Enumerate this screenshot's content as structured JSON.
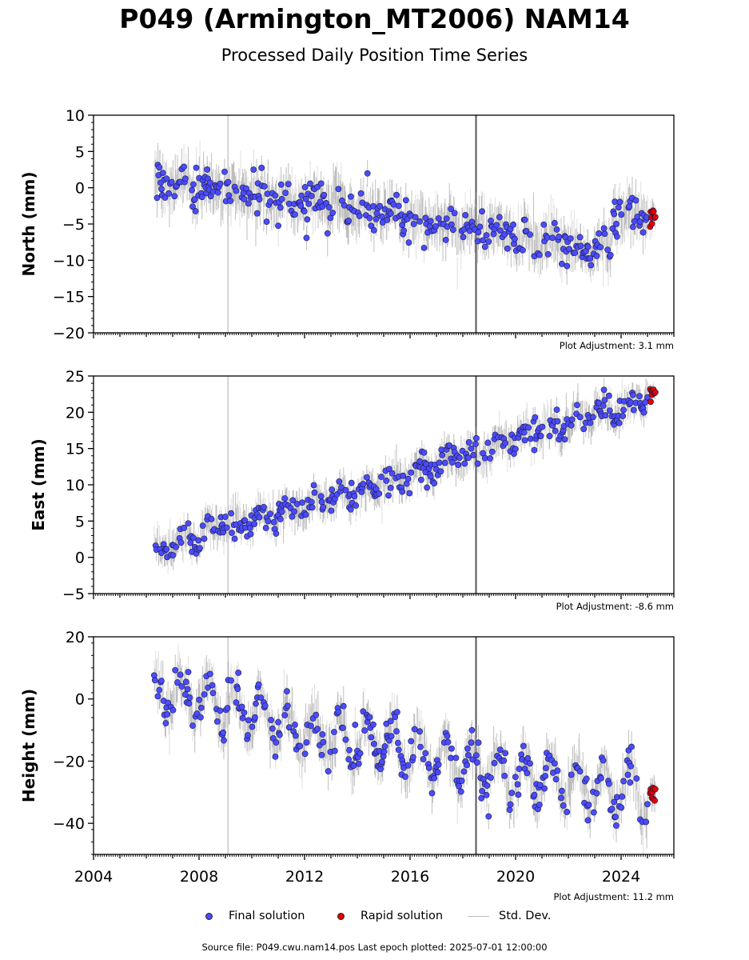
{
  "title": "P049 (Armington_MT2006) NAM14",
  "subtitle": "Processed Daily Position Time Series",
  "source_text": "Source file: P049.cwu.nam14.pos  Last epoch plotted: 2025-07-01 12:00:00",
  "legend": {
    "final": "Final solution",
    "rapid": "Rapid solution",
    "stddev": "Std. Dev."
  },
  "colors": {
    "final": "#4b4bff",
    "rapid": "#e60000",
    "stddev": "#bdbdbd",
    "event_line_light": "#c8c8c8",
    "event_line_dark": "#555555"
  },
  "chart_data": [
    {
      "type": "scatter",
      "ylabel": "North (mm)",
      "plot_adjustment": "Plot Adjustment: 3.1 mm",
      "xlim": [
        2004,
        2026
      ],
      "ylim": [
        -20,
        10
      ],
      "yticks": [
        10,
        5,
        0,
        -5,
        -10,
        -15,
        -20
      ],
      "ytick_labels": [
        "10",
        "5",
        "0",
        "−5",
        "−10",
        "−15",
        "−20"
      ],
      "event_lines": [
        {
          "x": 2009.1,
          "style": "light"
        },
        {
          "x": 2018.5,
          "style": "dark"
        }
      ],
      "series": [
        {
          "name": "Final solution",
          "x_range": [
            2006.3,
            2025.0
          ],
          "trend_points": [
            [
              2006.3,
              0.8
            ],
            [
              2012.0,
              -2.0
            ],
            [
              2018.0,
              -5.5
            ],
            [
              2023.6,
              -9.0
            ],
            [
              2023.7,
              -3.8
            ],
            [
              2025.0,
              -3.8
            ]
          ],
          "seasonal_amplitude": 0.8,
          "scatter": 1.4
        },
        {
          "name": "Rapid solution",
          "x_range": [
            2025.1,
            2025.3
          ],
          "trend_points": [
            [
              2025.1,
              -4.0
            ],
            [
              2025.3,
              -4.2
            ]
          ],
          "seasonal_amplitude": 0.3,
          "scatter": 0.8
        }
      ]
    },
    {
      "type": "scatter",
      "ylabel": "East (mm)",
      "plot_adjustment": "Plot Adjustment: -8.6 mm",
      "xlim": [
        2004,
        2026
      ],
      "ylim": [
        -5,
        25
      ],
      "yticks": [
        25,
        20,
        15,
        10,
        5,
        0,
        -5
      ],
      "ytick_labels": [
        "25",
        "20",
        "15",
        "10",
        "5",
        "0",
        "−5"
      ],
      "event_lines": [
        {
          "x": 2009.1,
          "style": "light"
        },
        {
          "x": 2018.5,
          "style": "dark"
        }
      ],
      "series": [
        {
          "name": "Final solution",
          "x_range": [
            2006.3,
            2025.0
          ],
          "trend_points": [
            [
              2006.3,
              0.8
            ],
            [
              2009.0,
              4.5
            ],
            [
              2012.0,
              7.0
            ],
            [
              2016.0,
              11.5
            ],
            [
              2018.5,
              14.5
            ],
            [
              2021.0,
              17.5
            ],
            [
              2025.0,
              22.0
            ]
          ],
          "seasonal_amplitude": 0.9,
          "scatter": 1.0
        },
        {
          "name": "Rapid solution",
          "x_range": [
            2025.1,
            2025.3
          ],
          "trend_points": [
            [
              2025.1,
              22.5
            ],
            [
              2025.3,
              22.7
            ]
          ],
          "seasonal_amplitude": 0.3,
          "scatter": 0.6
        }
      ]
    },
    {
      "type": "scatter",
      "ylabel": "Height (mm)",
      "plot_adjustment": "Plot Adjustment: 11.2 mm",
      "xlim": [
        2004,
        2026
      ],
      "ylim": [
        -50,
        20
      ],
      "yticks": [
        20,
        0,
        -20,
        -40
      ],
      "ytick_labels": [
        "20",
        "0",
        "−20",
        "−40"
      ],
      "xticks": [
        2004,
        2008,
        2012,
        2016,
        2020,
        2024
      ],
      "xtick_labels": [
        "2004",
        "2008",
        "2012",
        "2016",
        "2020",
        "2024"
      ],
      "event_lines": [
        {
          "x": 2009.1,
          "style": "light"
        },
        {
          "x": 2018.5,
          "style": "dark"
        }
      ],
      "series": [
        {
          "name": "Final solution",
          "x_range": [
            2006.3,
            2025.0
          ],
          "trend_points": [
            [
              2006.3,
              2.0
            ],
            [
              2008.0,
              1.0
            ],
            [
              2012.0,
              -11.0
            ],
            [
              2016.0,
              -16.0
            ],
            [
              2020.0,
              -25.0
            ],
            [
              2025.0,
              -30.0
            ]
          ],
          "seasonal_amplitude": 7.0,
          "scatter": 3.0
        },
        {
          "name": "Rapid solution",
          "x_range": [
            2025.1,
            2025.3
          ],
          "trend_points": [
            [
              2025.1,
              -31.0
            ],
            [
              2025.3,
              -32.0
            ]
          ],
          "seasonal_amplitude": 1.0,
          "scatter": 2.0
        }
      ]
    }
  ]
}
